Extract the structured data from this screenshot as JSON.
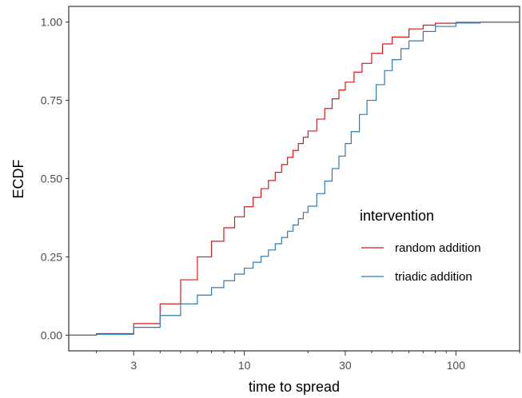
{
  "chart_data": {
    "type": "line",
    "step": true,
    "x_scale": "log10",
    "xlabel": "time to spread",
    "ylabel": "ECDF",
    "xlim": [
      1.48,
      200
    ],
    "ylim": [
      -0.05,
      1.05
    ],
    "x_ticks": [
      3,
      10,
      30,
      100
    ],
    "x_tick_labels": [
      "3",
      "10",
      "30",
      "100"
    ],
    "y_ticks": [
      0,
      0.25,
      0.5,
      0.75,
      1
    ],
    "y_tick_labels": [
      "0.00",
      "0.25",
      "0.50",
      "0.75",
      "1.00"
    ],
    "grid": false,
    "legend": {
      "title": "intervention",
      "position": "right-inside",
      "entries": [
        "random addition",
        "triadic addition"
      ]
    },
    "series": [
      {
        "name": "random addition",
        "color": "#d7191c",
        "points": [
          [
            1.48,
            0.0
          ],
          [
            2,
            0.005
          ],
          [
            3,
            0.037
          ],
          [
            4,
            0.1
          ],
          [
            5,
            0.177
          ],
          [
            6,
            0.25
          ],
          [
            7,
            0.3
          ],
          [
            8,
            0.343
          ],
          [
            9,
            0.378
          ],
          [
            10,
            0.41
          ],
          [
            11,
            0.44
          ],
          [
            12,
            0.468
          ],
          [
            13,
            0.494
          ],
          [
            14,
            0.52
          ],
          [
            15,
            0.545
          ],
          [
            16,
            0.568
          ],
          [
            17,
            0.59
          ],
          [
            18,
            0.612
          ],
          [
            19,
            0.632
          ],
          [
            20,
            0.652
          ],
          [
            22,
            0.69
          ],
          [
            24,
            0.724
          ],
          [
            26,
            0.755
          ],
          [
            28,
            0.783
          ],
          [
            30,
            0.808
          ],
          [
            33,
            0.84
          ],
          [
            36,
            0.868
          ],
          [
            40,
            0.9
          ],
          [
            45,
            0.93
          ],
          [
            50,
            0.952
          ],
          [
            60,
            0.978
          ],
          [
            70,
            0.99
          ],
          [
            80,
            0.996
          ],
          [
            100,
            0.999
          ],
          [
            130,
            1.0
          ],
          [
            200,
            1.0
          ]
        ]
      },
      {
        "name": "triadic addition",
        "color": "#2c7bb6",
        "points": [
          [
            1.48,
            0.0
          ],
          [
            2,
            0.003
          ],
          [
            3,
            0.025
          ],
          [
            4,
            0.063
          ],
          [
            5,
            0.1
          ],
          [
            6,
            0.128
          ],
          [
            7,
            0.152
          ],
          [
            8,
            0.174
          ],
          [
            9,
            0.195
          ],
          [
            10,
            0.214
          ],
          [
            11,
            0.233
          ],
          [
            12,
            0.252
          ],
          [
            13,
            0.272
          ],
          [
            14,
            0.292
          ],
          [
            15,
            0.312
          ],
          [
            16,
            0.332
          ],
          [
            17,
            0.352
          ],
          [
            18,
            0.372
          ],
          [
            19,
            0.392
          ],
          [
            20,
            0.412
          ],
          [
            22,
            0.452
          ],
          [
            24,
            0.492
          ],
          [
            26,
            0.532
          ],
          [
            28,
            0.572
          ],
          [
            30,
            0.612
          ],
          [
            32,
            0.65
          ],
          [
            35,
            0.705
          ],
          [
            38,
            0.75
          ],
          [
            42,
            0.8
          ],
          [
            46,
            0.845
          ],
          [
            50,
            0.88
          ],
          [
            55,
            0.915
          ],
          [
            60,
            0.94
          ],
          [
            70,
            0.97
          ],
          [
            80,
            0.986
          ],
          [
            100,
            0.997
          ],
          [
            130,
            1.0
          ],
          [
            200,
            1.0
          ]
        ]
      }
    ]
  }
}
